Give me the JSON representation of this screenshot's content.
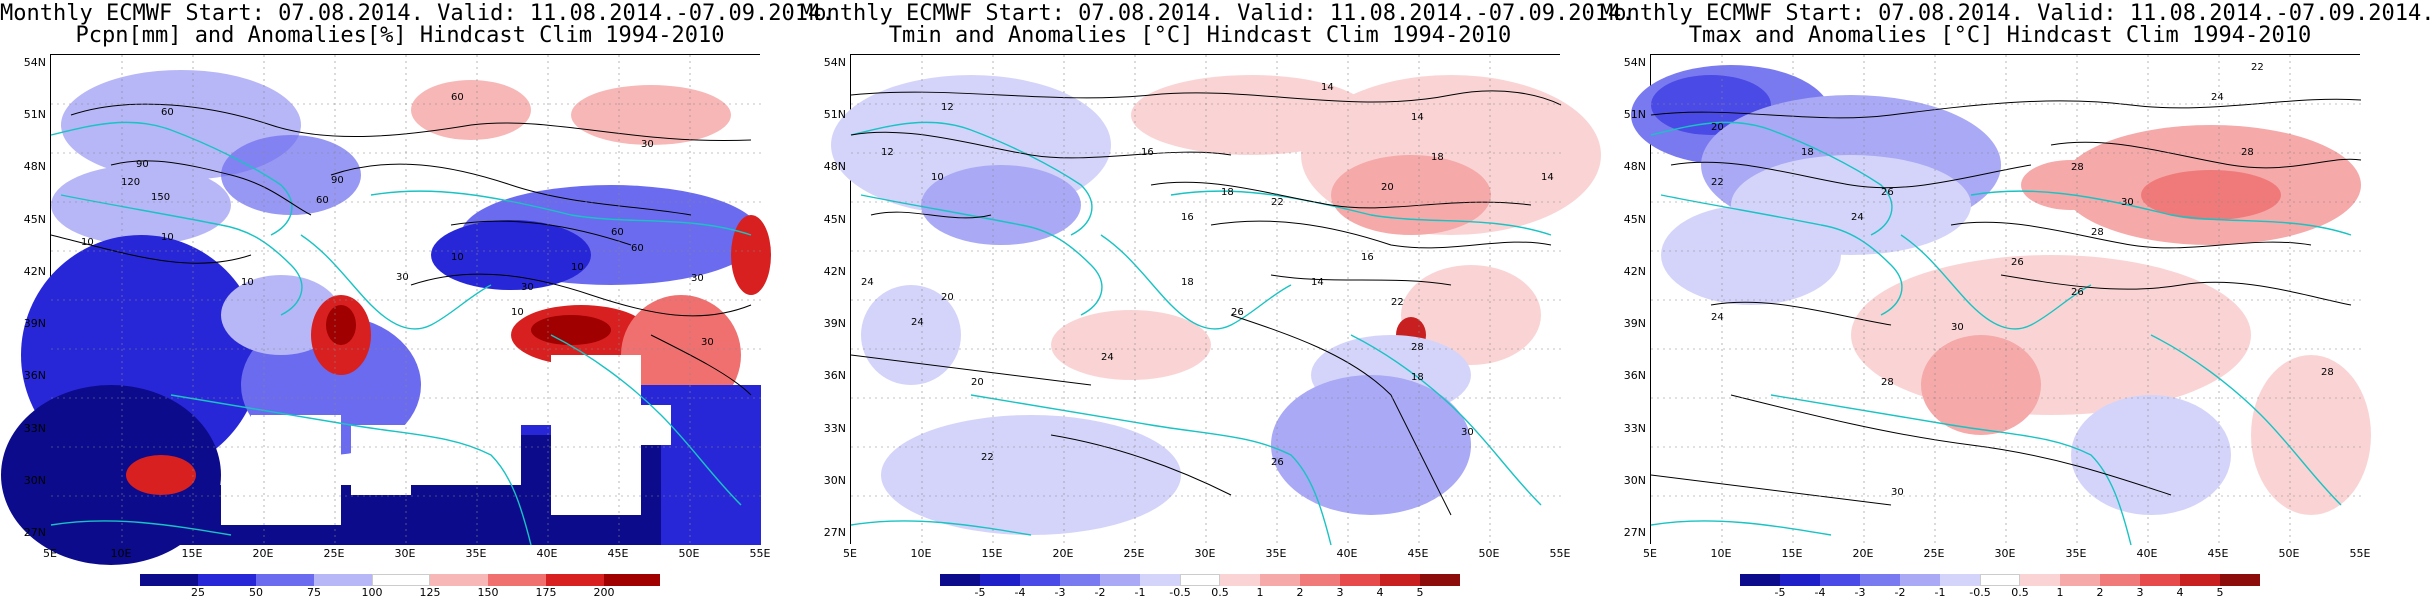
{
  "panels": [
    {
      "id": "pcpn",
      "title_line1": "Monthly ECMWF Start: 07.08.2014. Valid: 11.08.2014.-07.09.2014.",
      "title_line2": "Pcpn[mm] and Anomalies[%] Hindcast Clim 1994-2010",
      "colorbar_labels": [
        "25",
        "50",
        "75",
        "100",
        "125",
        "150",
        "175",
        "200"
      ],
      "colorbar_colors": [
        "#0b0b8c",
        "#2727d8",
        "#6b6bf0",
        "#b7b7f7",
        "#ffffff",
        "#f7b7b7",
        "#f07070",
        "#d82020",
        "#a00000"
      ],
      "contour_labels": [
        "60",
        "60",
        "30",
        "90",
        "120",
        "150",
        "90",
        "60",
        "10",
        "10",
        "10",
        "30",
        "60",
        "60",
        "30",
        "10",
        "30",
        "10",
        "30",
        "10"
      ]
    },
    {
      "id": "tmin",
      "title_line1": "Monthly ECMWF Start: 07.08.2014. Valid: 11.08.2014.-07.09.2014.",
      "title_line2": "Tmin and Anomalies [°C] Hindcast Clim 1994-2010",
      "colorbar_labels": [
        "-5",
        "-4",
        "-3",
        "-2",
        "-1",
        "-0.5",
        "0.5",
        "1",
        "2",
        "3",
        "4",
        "5"
      ],
      "colorbar_colors": [
        "#0b0b8c",
        "#2020c8",
        "#4a4ae6",
        "#7a7af0",
        "#a9a9f5",
        "#d4d4fa",
        "#ffffff",
        "#fad4d4",
        "#f5a9a9",
        "#f07a7a",
        "#e64a4a",
        "#c82020",
        "#8c0b0b"
      ],
      "contour_labels": [
        "14",
        "12",
        "14",
        "12",
        "16",
        "18",
        "10",
        "14",
        "20",
        "18",
        "16",
        "22",
        "24",
        "18",
        "16",
        "14",
        "22",
        "20",
        "24",
        "20",
        "24",
        "26",
        "18",
        "22",
        "28",
        "30",
        "26"
      ]
    },
    {
      "id": "tmax",
      "title_line1": "Monthly ECMWF Start: 07.08.2014. Valid: 11.08.2014.-07.09.2014.",
      "title_line2": "Tmax and Anomalies [°C] Hindcast Clim 1994-2010",
      "colorbar_labels": [
        "-5",
        "-4",
        "-3",
        "-2",
        "-1",
        "-0.5",
        "0.5",
        "1",
        "2",
        "3",
        "4",
        "5"
      ],
      "colorbar_colors": [
        "#0b0b8c",
        "#2020c8",
        "#4a4ae6",
        "#7a7af0",
        "#a9a9f5",
        "#d4d4fa",
        "#ffffff",
        "#fad4d4",
        "#f5a9a9",
        "#f07a7a",
        "#e64a4a",
        "#c82020",
        "#8c0b0b"
      ],
      "contour_labels": [
        "22",
        "24",
        "20",
        "18",
        "28",
        "30",
        "28",
        "22",
        "26",
        "24",
        "26",
        "28",
        "30",
        "24",
        "26",
        "28",
        "30",
        "28"
      ]
    }
  ],
  "latitude_labels": [
    "54N",
    "51N",
    "48N",
    "45N",
    "42N",
    "39N",
    "36N",
    "33N",
    "30N",
    "27N"
  ],
  "longitude_labels": [
    "5E",
    "10E",
    "15E",
    "20E",
    "25E",
    "30E",
    "35E",
    "40E",
    "45E",
    "50E",
    "55E"
  ],
  "colors": {
    "coastline": "#19c3c3",
    "contour": "#000000",
    "frame": "#000000"
  }
}
